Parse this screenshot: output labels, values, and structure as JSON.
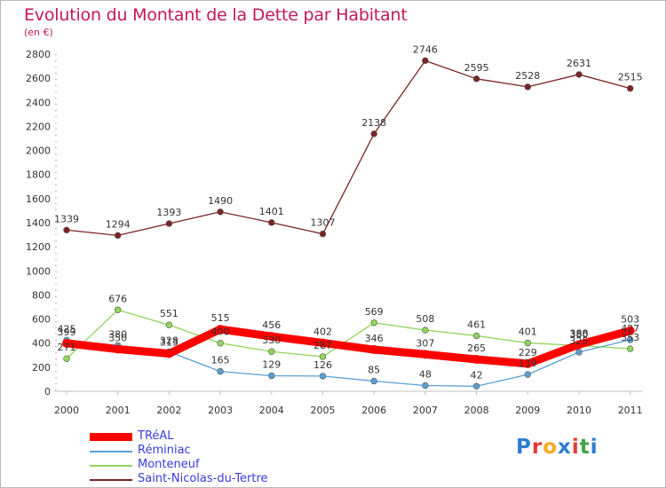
{
  "title": "Evolution du Montant de la Dette par Habitant",
  "subtitle": "(en €)",
  "logo": {
    "text": "Proxiti",
    "letter_colors": [
      "#2e7dd1",
      "#e53935",
      "#f9a825",
      "#2e7dd1",
      "#e53935",
      "#43a047",
      "#2e7dd1"
    ]
  },
  "chart_data": {
    "type": "line",
    "title": "Evolution du Montant de la Dette par Habitant",
    "subtitle": "(en €)",
    "xlabel": "",
    "ylabel": "",
    "categories": [
      "2000",
      "2001",
      "2002",
      "2003",
      "2004",
      "2005",
      "2006",
      "2007",
      "2008",
      "2009",
      "2010",
      "2011"
    ],
    "y_ticks": [
      0,
      200,
      400,
      600,
      800,
      1000,
      1200,
      1400,
      1600,
      1800,
      2000,
      2200,
      2400,
      2600,
      2800
    ],
    "ylim": [
      0,
      2800
    ],
    "grid": false,
    "legend_position": "bottom-left",
    "series": [
      {
        "name": "Saint-Nicolas-du-Tertre",
        "color": "#7b2424",
        "values": [
          1339,
          1294,
          1393,
          1490,
          1401,
          1307,
          2138,
          2746,
          2595,
          2528,
          2631,
          2515
        ]
      },
      {
        "name": "Monteneuf",
        "color": "#8fd65a",
        "values": [
          271,
          676,
          551,
          400,
          330,
          287,
          569,
          508,
          461,
          401,
          380,
          353
        ]
      },
      {
        "name": "Réminiac",
        "color": "#5aa0d4",
        "values": [
          425,
          380,
          328,
          165,
          129,
          126,
          85,
          48,
          42,
          139,
          325,
          427
        ]
      },
      {
        "name": "TRéAL",
        "color": "#ff0000",
        "values": [
          399,
          350,
          313,
          515,
          456,
          402,
          346,
          307,
          265,
          229,
          388,
          503
        ]
      }
    ],
    "data_labels": [
      [
        "1339",
        "1294",
        "1393",
        "1490",
        "1401",
        "1307",
        "2138",
        "2746",
        "2595",
        "2528",
        "2631",
        "2515"
      ],
      [
        "271",
        "676",
        "551",
        "400",
        "330",
        "287",
        "569",
        "508",
        "461",
        "401",
        "380",
        "353"
      ],
      [
        "425",
        "380",
        "328",
        "165",
        "129",
        "126",
        "85",
        "48",
        "42",
        "139",
        "325",
        "427"
      ],
      [
        "399",
        "350",
        "313",
        "515",
        "456",
        "402",
        "346",
        "307",
        "265",
        "229",
        "388",
        "503"
      ]
    ]
  },
  "legend": [
    {
      "label": "TRéAL",
      "color": "#ff0000"
    },
    {
      "label": "Réminiac",
      "color": "#5aa0d4"
    },
    {
      "label": "Monteneuf",
      "color": "#8fd65a"
    },
    {
      "label": "Saint-Nicolas-du-Tertre",
      "color": "#7b2424"
    }
  ]
}
